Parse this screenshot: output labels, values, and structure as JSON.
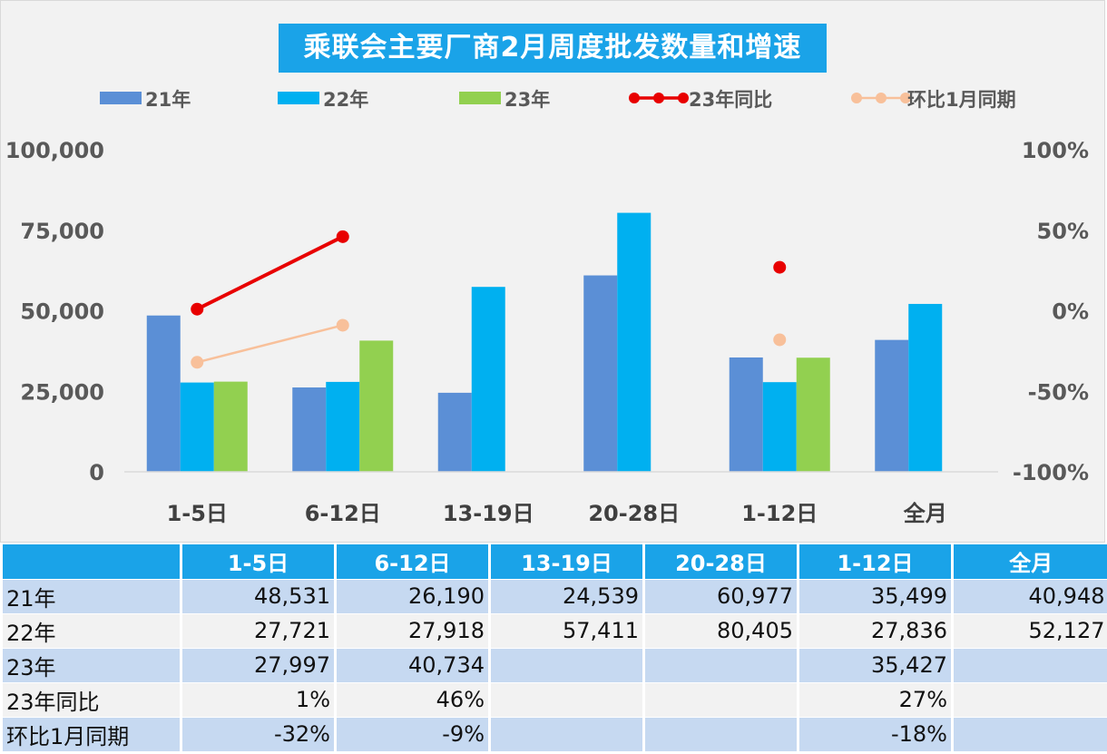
{
  "title": "乘联会主要厂商2月周度批发数量和增速",
  "colors": {
    "y21": "#5b8fd6",
    "y22": "#00b0f0",
    "y23": "#92d050",
    "yoy": "#e80000",
    "mom": "#f8c09a",
    "title_bg": "#1aa3e8"
  },
  "chart_data": {
    "type": "bar",
    "title": "乘联会主要厂商2月周度批发数量和增速",
    "categories": [
      "1-5日",
      "6-12日",
      "13-19日",
      "20-28日",
      "1-12日",
      "全月"
    ],
    "series": [
      {
        "name": "21年",
        "type": "bar",
        "values": [
          48531,
          26190,
          24539,
          60977,
          35499,
          40948
        ]
      },
      {
        "name": "22年",
        "type": "bar",
        "values": [
          27721,
          27918,
          57411,
          80405,
          27836,
          52127
        ]
      },
      {
        "name": "23年",
        "type": "bar",
        "values": [
          27997,
          40734,
          null,
          null,
          35427,
          null
        ]
      },
      {
        "name": "23年同比",
        "type": "line",
        "axis": "right",
        "values": [
          1,
          46,
          null,
          null,
          27,
          null
        ]
      },
      {
        "name": "环比1月同期",
        "type": "line",
        "axis": "right",
        "values": [
          -32,
          -9,
          null,
          null,
          -18,
          null
        ]
      }
    ],
    "y_left": {
      "ylim": [
        0,
        100000
      ],
      "ticks": [
        "0",
        "25,000",
        "50,000",
        "75,000",
        "100,000"
      ]
    },
    "y_right": {
      "ylim": [
        -100,
        100
      ],
      "ticks": [
        "-100%",
        "-50%",
        "0%",
        "50%",
        "100%"
      ]
    },
    "legend_position": "top"
  },
  "table": {
    "headers": [
      "1-5日",
      "6-12日",
      "13-19日",
      "20-28日",
      "1-12日",
      "全月"
    ],
    "rows": [
      {
        "label": "21年",
        "cells": [
          "48,531",
          "26,190",
          "24,539",
          "60,977",
          "35,499",
          "40,948"
        ]
      },
      {
        "label": "22年",
        "cells": [
          "27,721",
          "27,918",
          "57,411",
          "80,405",
          "27,836",
          "52,127"
        ]
      },
      {
        "label": "23年",
        "cells": [
          "27,997",
          "40,734",
          "",
          "",
          "35,427",
          ""
        ]
      },
      {
        "label": "23年同比",
        "cells": [
          "1%",
          "46%",
          "",
          "",
          "27%",
          ""
        ]
      },
      {
        "label": "环比1月同期",
        "cells": [
          "-32%",
          "-9%",
          "",
          "",
          "-18%",
          ""
        ]
      }
    ]
  }
}
